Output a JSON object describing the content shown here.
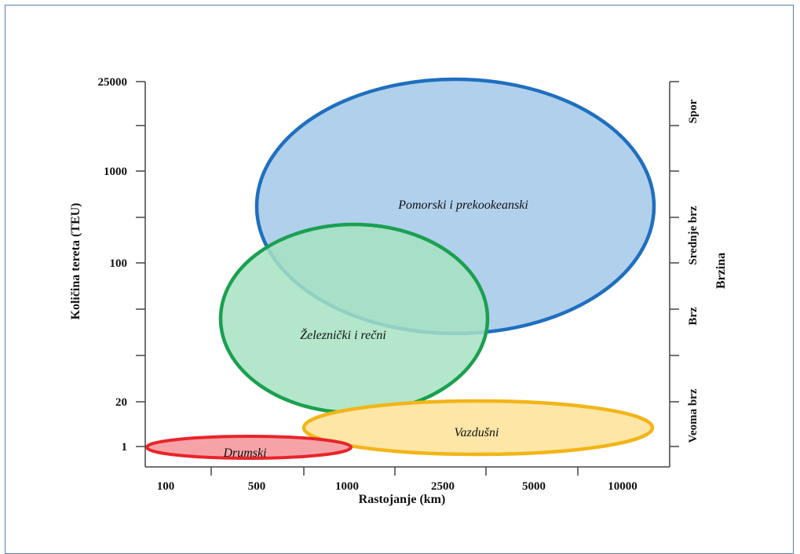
{
  "chart_data": {
    "type": "bubble-regions",
    "xlabel": "Rastojanje (km)",
    "ylabel": "Količina tereta (TEU)",
    "y2label": "Brzina",
    "x_tick_labels": [
      "100",
      "500",
      "1000",
      "2500",
      "5000",
      "10000"
    ],
    "y_tick_labels": [
      "1",
      "20",
      "100",
      "1000",
      "25000"
    ],
    "y2_tick_labels": [
      "Veoma brz",
      "Brz",
      "Srednje brz",
      "Spor"
    ],
    "regions": [
      {
        "name": "Pomorski i prekookeanski",
        "color": "#1f6fbf",
        "fill": "#b1d0ec"
      },
      {
        "name": "Železnički i rečni",
        "color": "#1aa050",
        "fill": "#a6e2c2"
      },
      {
        "name": "Vazdušni",
        "color": "#f2b517",
        "fill": "#fde6a6"
      },
      {
        "name": "Drumski",
        "color": "#e8242a",
        "fill": "#f6a3a8"
      }
    ],
    "grid": false
  }
}
